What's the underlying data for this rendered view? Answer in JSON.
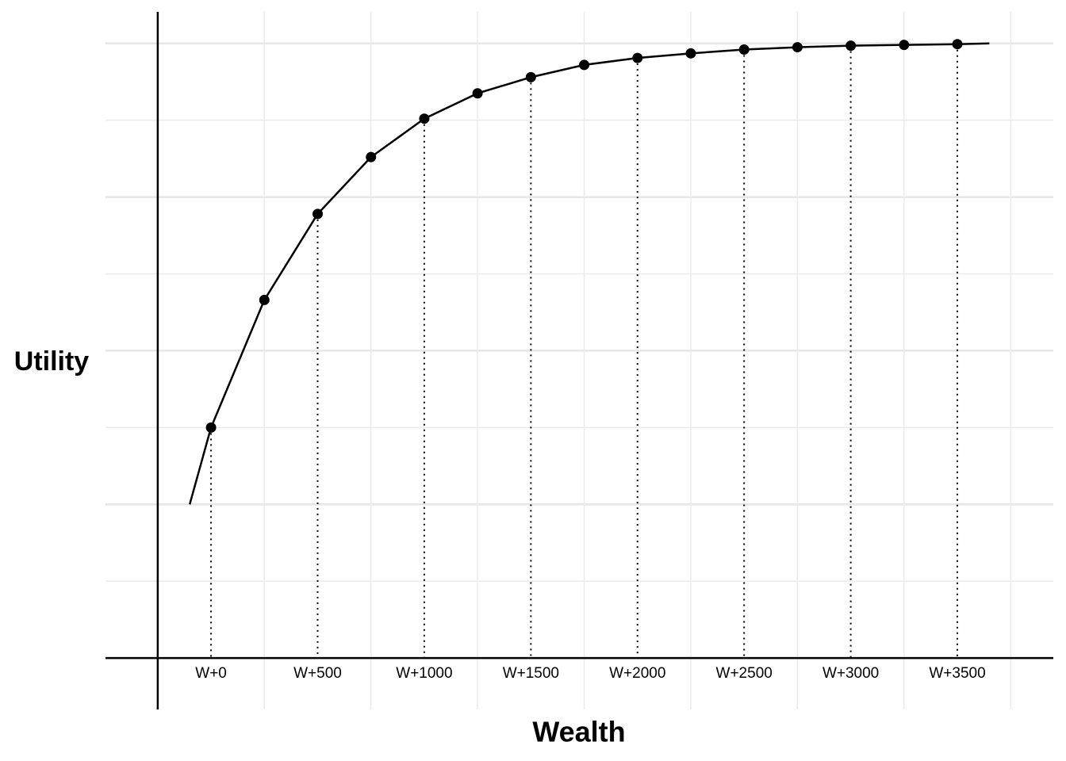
{
  "chart_data": {
    "type": "line",
    "xlabel": "Wealth",
    "ylabel": "Utility",
    "x": [
      -100,
      0,
      250,
      500,
      750,
      1000,
      1250,
      1500,
      1750,
      2000,
      2250,
      2500,
      2750,
      3000,
      3250,
      3500,
      3650
    ],
    "values": [
      2.0,
      3.0,
      4.66,
      5.78,
      6.52,
      7.02,
      7.35,
      7.56,
      7.72,
      7.81,
      7.87,
      7.92,
      7.95,
      7.97,
      7.98,
      7.99,
      8.0
    ],
    "points": {
      "x": [
        0,
        250,
        500,
        750,
        1000,
        1250,
        1500,
        1750,
        2000,
        2250,
        2500,
        2750,
        3000,
        3250,
        3500
      ],
      "y": [
        3.0,
        4.66,
        5.78,
        6.52,
        7.02,
        7.35,
        7.56,
        7.72,
        7.81,
        7.87,
        7.92,
        7.95,
        7.97,
        7.98,
        7.99
      ]
    },
    "color": "#000000",
    "xlim": [
      -495,
      3950
    ],
    "ylim": [
      -0.67,
      8.41
    ],
    "xticks": [
      {
        "value": 0,
        "label": "W+0"
      },
      {
        "value": 500,
        "label": "W+500"
      },
      {
        "value": 1000,
        "label": "W+1000"
      },
      {
        "value": 1500,
        "label": "W+1500"
      },
      {
        "value": 2000,
        "label": "W+2000"
      },
      {
        "value": 2500,
        "label": "W+2500"
      },
      {
        "value": 3000,
        "label": "W+3000"
      },
      {
        "value": 3500,
        "label": "W+3500"
      }
    ],
    "xminorticks": [
      250,
      750,
      1250,
      1750,
      2250,
      2750,
      3250,
      3750
    ],
    "yticks": [
      0,
      2,
      4,
      6,
      8
    ],
    "yminorticks": [
      1,
      3,
      5,
      7
    ],
    "yaxis_at": -250,
    "droplines_at_xticks": true,
    "grid": true
  }
}
